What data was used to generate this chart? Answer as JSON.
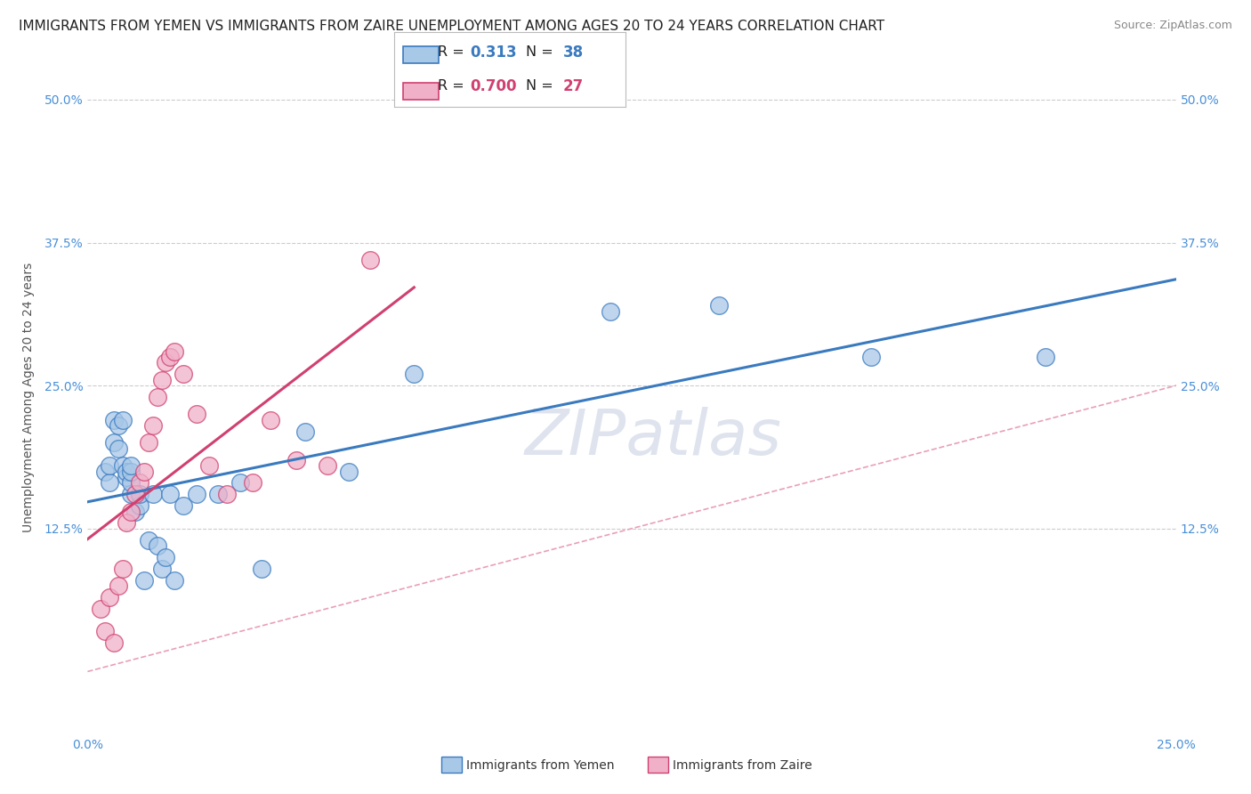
{
  "title": "IMMIGRANTS FROM YEMEN VS IMMIGRANTS FROM ZAIRE UNEMPLOYMENT AMONG AGES 20 TO 24 YEARS CORRELATION CHART",
  "source": "Source: ZipAtlas.com",
  "ylabel": "Unemployment Among Ages 20 to 24 years",
  "watermark": "ZIPatlas",
  "color_yemen": "#a8c8e8",
  "color_zaire": "#f0b0c8",
  "color_line_yemen": "#3a7abf",
  "color_line_zaire": "#d04070",
  "color_diagonal": "#e0a0b0",
  "background": "#ffffff",
  "xlim": [
    0.0,
    0.25
  ],
  "ylim": [
    -0.055,
    0.535
  ],
  "yticks": [
    0.0,
    0.125,
    0.25,
    0.375,
    0.5
  ],
  "ytick_labels_left": [
    "",
    "12.5%",
    "25.0%",
    "37.5%",
    "50.0%"
  ],
  "ytick_labels_right": [
    "",
    "12.5%",
    "25.0%",
    "37.5%",
    "50.0%"
  ],
  "xticks": [
    0.0,
    0.25
  ],
  "xtick_labels": [
    "0.0%",
    "25.0%"
  ],
  "legend_r1": "R =  0.313",
  "legend_n1": "N = 38",
  "legend_r2": "R =  0.700",
  "legend_n2": "N = 27",
  "bottom_legend1": "Immigrants from Yemen",
  "bottom_legend2": "Immigrants from Zaire",
  "yemen_x": [
    0.004,
    0.005,
    0.005,
    0.006,
    0.006,
    0.007,
    0.007,
    0.008,
    0.008,
    0.009,
    0.009,
    0.01,
    0.01,
    0.01,
    0.01,
    0.011,
    0.012,
    0.012,
    0.013,
    0.014,
    0.015,
    0.016,
    0.017,
    0.018,
    0.019,
    0.02,
    0.022,
    0.025,
    0.03,
    0.035,
    0.04,
    0.05,
    0.06,
    0.075,
    0.12,
    0.145,
    0.18,
    0.22
  ],
  "yemen_y": [
    0.175,
    0.165,
    0.18,
    0.2,
    0.22,
    0.195,
    0.215,
    0.18,
    0.22,
    0.17,
    0.175,
    0.155,
    0.165,
    0.175,
    0.18,
    0.14,
    0.145,
    0.155,
    0.08,
    0.115,
    0.155,
    0.11,
    0.09,
    0.1,
    0.155,
    0.08,
    0.145,
    0.155,
    0.155,
    0.165,
    0.09,
    0.21,
    0.175,
    0.26,
    0.315,
    0.32,
    0.275,
    0.275
  ],
  "zaire_x": [
    0.003,
    0.004,
    0.005,
    0.006,
    0.007,
    0.008,
    0.009,
    0.01,
    0.011,
    0.012,
    0.013,
    0.014,
    0.015,
    0.016,
    0.017,
    0.018,
    0.019,
    0.02,
    0.022,
    0.025,
    0.028,
    0.032,
    0.038,
    0.042,
    0.048,
    0.055,
    0.065
  ],
  "zaire_y": [
    0.055,
    0.035,
    0.065,
    0.025,
    0.075,
    0.09,
    0.13,
    0.14,
    0.155,
    0.165,
    0.175,
    0.2,
    0.215,
    0.24,
    0.255,
    0.27,
    0.275,
    0.28,
    0.26,
    0.225,
    0.18,
    0.155,
    0.165,
    0.22,
    0.185,
    0.18,
    0.36
  ],
  "title_fontsize": 11,
  "source_fontsize": 9,
  "ylabel_fontsize": 10,
  "tick_fontsize": 10,
  "legend_fontsize": 12,
  "watermark_fontsize": 52,
  "scatter_size": 200
}
